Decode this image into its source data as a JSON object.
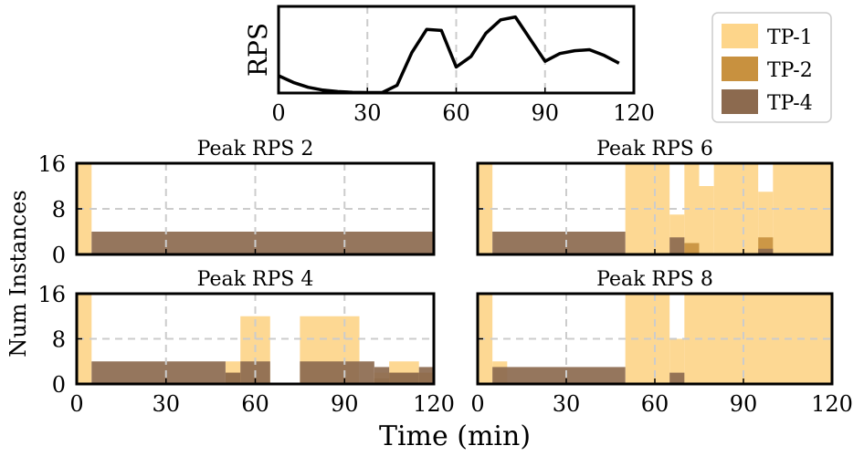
{
  "colors": {
    "tp1": "#fdd58a",
    "tp2": "#c8913f",
    "tp4": "#8c6a4f",
    "rps_line": "#000000",
    "grid": "#cccccc"
  },
  "figure": {
    "xlabel": "Time (min)",
    "ylabel": "Num Instances"
  },
  "legend": {
    "placement": "top-right",
    "items": [
      {
        "label": "TP-1",
        "color": "#fdd58a"
      },
      {
        "label": "TP-2",
        "color": "#c8913f"
      },
      {
        "label": "TP-4",
        "color": "#8c6a4f"
      }
    ]
  },
  "chart_data": [
    {
      "type": "line",
      "title": "",
      "xlabel": "",
      "ylabel": "RPS",
      "xlim": [
        0,
        120
      ],
      "ylim": [
        0,
        9
      ],
      "xticks": [
        "0",
        "30",
        "60",
        "90",
        "120"
      ],
      "grid": "vertical dashed",
      "x": [
        0,
        5,
        10,
        15,
        20,
        25,
        30,
        35,
        40,
        45,
        50,
        55,
        60,
        65,
        70,
        75,
        80,
        85,
        90,
        95,
        100,
        105,
        110,
        115
      ],
      "y": [
        1.8,
        1.1,
        0.6,
        0.3,
        0.15,
        0.08,
        0.05,
        0.05,
        0.8,
        4.2,
        6.6,
        6.5,
        2.7,
        3.8,
        6.2,
        7.6,
        7.9,
        5.6,
        3.3,
        4.1,
        4.4,
        4.5,
        3.9,
        3.1
      ]
    },
    {
      "type": "area",
      "title": "Peak RPS 2",
      "xlim": [
        0,
        120
      ],
      "ylim": [
        0,
        16
      ],
      "yticks": [
        "0",
        "8",
        "16"
      ],
      "xticks": [
        "0",
        "30",
        "60",
        "90",
        "120"
      ],
      "show_xticklabels": false,
      "show_yticklabels": true,
      "grid": "dashed",
      "series": [
        {
          "name": "TP-4",
          "segments": [
            [
              5,
              120,
              4
            ]
          ]
        },
        {
          "name": "TP-2",
          "segments": []
        },
        {
          "name": "TP-1",
          "segments": [
            [
              0,
              5,
              16
            ]
          ]
        }
      ]
    },
    {
      "type": "area",
      "title": "Peak RPS 6",
      "xlim": [
        0,
        120
      ],
      "ylim": [
        0,
        16
      ],
      "yticks": [
        "0",
        "8",
        "16"
      ],
      "xticks": [
        "0",
        "30",
        "60",
        "90",
        "120"
      ],
      "show_xticklabels": false,
      "show_yticklabels": false,
      "grid": "dashed",
      "series": [
        {
          "name": "TP-4",
          "segments": [
            [
              5,
              50,
              4
            ],
            [
              65,
              70,
              3
            ],
            [
              95,
              100,
              1
            ]
          ]
        },
        {
          "name": "TP-2",
          "segments": [
            [
              70,
              75,
              2
            ],
            [
              95,
              100,
              3
            ]
          ]
        },
        {
          "name": "TP-1",
          "segments": [
            [
              0,
              5,
              16
            ],
            [
              50,
              65,
              16
            ],
            [
              65,
              70,
              7
            ],
            [
              70,
              75,
              16
            ],
            [
              75,
              80,
              12
            ],
            [
              80,
              95,
              16
            ],
            [
              95,
              100,
              11
            ],
            [
              100,
              120,
              16
            ]
          ]
        }
      ]
    },
    {
      "type": "area",
      "title": "Peak RPS 4",
      "xlim": [
        0,
        120
      ],
      "ylim": [
        0,
        16
      ],
      "yticks": [
        "0",
        "8",
        "16"
      ],
      "xticks": [
        "0",
        "30",
        "60",
        "90",
        "120"
      ],
      "show_xticklabels": true,
      "show_yticklabels": true,
      "grid": "dashed",
      "series": [
        {
          "name": "TP-4",
          "segments": [
            [
              5,
              50,
              4
            ],
            [
              50,
              55,
              2
            ],
            [
              55,
              65,
              4
            ],
            [
              75,
              95,
              4
            ],
            [
              95,
              100,
              4
            ],
            [
              100,
              105,
              3
            ],
            [
              105,
              115,
              2
            ],
            [
              115,
              120,
              3
            ]
          ]
        },
        {
          "name": "TP-2",
          "segments": [
            [
              50,
              55,
              2
            ],
            [
              100,
              105,
              1
            ],
            [
              105,
              115,
              2
            ],
            [
              115,
              120,
              2
            ]
          ]
        },
        {
          "name": "TP-1",
          "segments": [
            [
              0,
              5,
              16
            ],
            [
              50,
              55,
              4
            ],
            [
              55,
              65,
              12
            ],
            [
              75,
              95,
              12
            ],
            [
              100,
              105,
              2
            ],
            [
              105,
              115,
              4
            ],
            [
              115,
              120,
              0
            ]
          ]
        }
      ]
    },
    {
      "type": "area",
      "title": "Peak RPS 8",
      "xlim": [
        0,
        120
      ],
      "ylim": [
        0,
        16
      ],
      "yticks": [
        "0",
        "8",
        "16"
      ],
      "xticks": [
        "0",
        "30",
        "60",
        "90",
        "120"
      ],
      "show_xticklabels": true,
      "show_yticklabels": false,
      "grid": "dashed",
      "series": [
        {
          "name": "TP-4",
          "segments": [
            [
              5,
              50,
              3
            ],
            [
              65,
              70,
              2
            ]
          ]
        },
        {
          "name": "TP-2",
          "segments": []
        },
        {
          "name": "TP-1",
          "segments": [
            [
              0,
              5,
              16
            ],
            [
              5,
              10,
              4
            ],
            [
              50,
              65,
              16
            ],
            [
              65,
              70,
              8
            ],
            [
              70,
              120,
              16
            ]
          ]
        }
      ]
    }
  ]
}
